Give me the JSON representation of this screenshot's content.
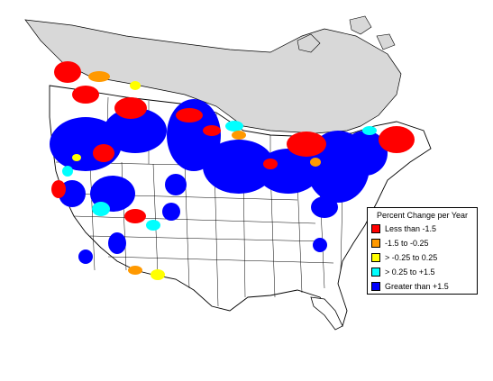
{
  "legend": {
    "title": "Percent Change per Year",
    "items": [
      {
        "label": "Less than -1.5",
        "color": "#ff0000"
      },
      {
        "label": "-1.5 to -0.25",
        "color": "#ff9900"
      },
      {
        "label": "> -0.25 to 0.25",
        "color": "#ffff00"
      },
      {
        "label": "> 0.25 to +1.5",
        "color": "#00ffff"
      },
      {
        "label": "Greater than +1.5",
        "color": "#0000ff"
      }
    ]
  },
  "map_colors": {
    "no_data_region": "#d8d8d8",
    "boundaries": "#000000",
    "land": "#ffffff"
  }
}
